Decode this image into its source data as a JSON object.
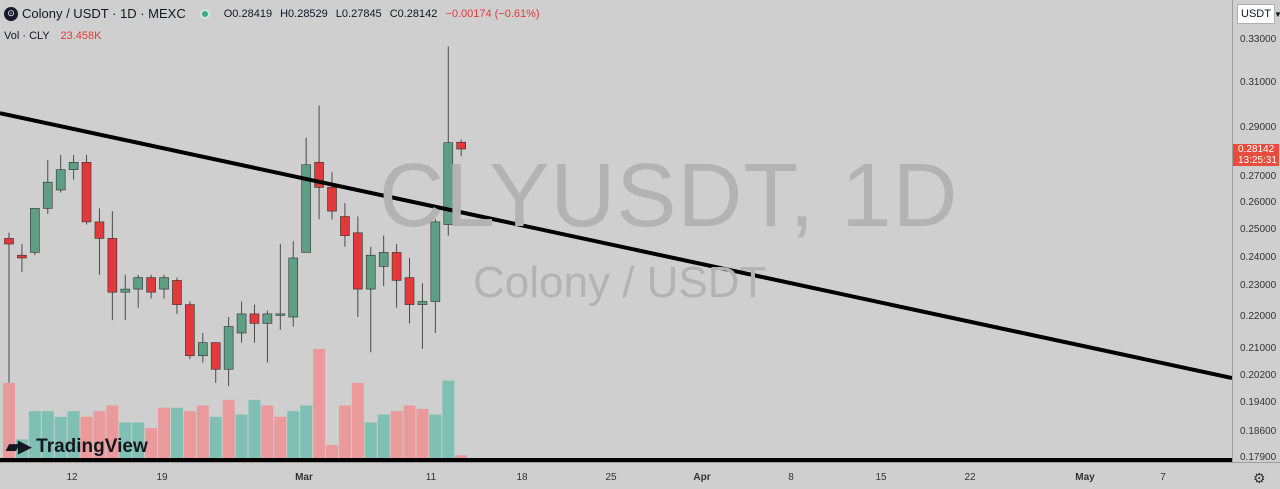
{
  "header": {
    "logo_icon": "colony-logo-icon",
    "title": "Colony / USDT · 1D · MEXC",
    "open": "O0.28419",
    "high": "H0.28529",
    "low": "L0.27845",
    "close": "C0.28142",
    "change": "−0.00174 (−0.61%)"
  },
  "volume_label": {
    "name": "Vol · CLY",
    "value": "23.458K"
  },
  "watermark": {
    "symbol": "CLYUSDT, 1D",
    "pair": "Colony / USDT"
  },
  "currency_button": "USDT",
  "last_price": {
    "price": "0.28142",
    "countdown": "13:25:31"
  },
  "brand": "TradingView",
  "colors": {
    "up": "#5e9e84",
    "down": "#e23a3a",
    "vol_up": "#7fbfb4",
    "vol_down": "#ea9a9a",
    "background": "#cfcfcf"
  },
  "chart_data": {
    "type": "candlestick",
    "y_ticks": [
      "0.33000",
      "0.31000",
      "0.29000",
      "0.27000",
      "0.26000",
      "0.25000",
      "0.24000",
      "0.23000",
      "0.22000",
      "0.21000",
      "0.20200",
      "0.19400",
      "0.18600",
      "0.17900"
    ],
    "x_ticks": [
      "12",
      "19",
      "Mar",
      "11",
      "18",
      "25",
      "Apr",
      "8",
      "15",
      "22",
      "May",
      "7"
    ],
    "candles": [
      {
        "date": "Feb 8",
        "o": 0.247,
        "h": 0.249,
        "l": 0.2,
        "c": 0.245
      },
      {
        "date": "Feb 9",
        "o": 0.241,
        "h": 0.245,
        "l": 0.235,
        "c": 0.24
      },
      {
        "date": "Feb 10",
        "o": 0.242,
        "h": 0.258,
        "l": 0.241,
        "c": 0.258
      },
      {
        "date": "Feb 11",
        "o": 0.258,
        "h": 0.277,
        "l": 0.256,
        "c": 0.268
      },
      {
        "date": "Feb 12",
        "o": 0.265,
        "h": 0.279,
        "l": 0.264,
        "c": 0.273
      },
      {
        "date": "Feb 13",
        "o": 0.273,
        "h": 0.279,
        "l": 0.269,
        "c": 0.276
      },
      {
        "date": "Feb 14",
        "o": 0.276,
        "h": 0.279,
        "l": 0.252,
        "c": 0.253
      },
      {
        "date": "Feb 15",
        "o": 0.253,
        "h": 0.258,
        "l": 0.234,
        "c": 0.247
      },
      {
        "date": "Feb 16",
        "o": 0.247,
        "h": 0.257,
        "l": 0.219,
        "c": 0.228
      },
      {
        "date": "Feb 17",
        "o": 0.228,
        "h": 0.234,
        "l": 0.219,
        "c": 0.229
      },
      {
        "date": "Feb 18",
        "o": 0.229,
        "h": 0.234,
        "l": 0.223,
        "c": 0.233
      },
      {
        "date": "Feb 19",
        "o": 0.233,
        "h": 0.234,
        "l": 0.226,
        "c": 0.228
      },
      {
        "date": "Feb 20",
        "o": 0.229,
        "h": 0.234,
        "l": 0.226,
        "c": 0.233
      },
      {
        "date": "Feb 21",
        "o": 0.232,
        "h": 0.233,
        "l": 0.221,
        "c": 0.224
      },
      {
        "date": "Feb 22",
        "o": 0.224,
        "h": 0.225,
        "l": 0.207,
        "c": 0.208
      },
      {
        "date": "Feb 23",
        "o": 0.208,
        "h": 0.215,
        "l": 0.206,
        "c": 0.212
      },
      {
        "date": "Feb 24",
        "o": 0.212,
        "h": 0.212,
        "l": 0.2,
        "c": 0.204
      },
      {
        "date": "Feb 25",
        "o": 0.204,
        "h": 0.22,
        "l": 0.199,
        "c": 0.217
      },
      {
        "date": "Feb 26",
        "o": 0.215,
        "h": 0.225,
        "l": 0.212,
        "c": 0.221
      },
      {
        "date": "Feb 27",
        "o": 0.221,
        "h": 0.224,
        "l": 0.212,
        "c": 0.218
      },
      {
        "date": "Feb 28",
        "o": 0.218,
        "h": 0.222,
        "l": 0.206,
        "c": 0.221
      },
      {
        "date": "Feb 29",
        "o": 0.221,
        "h": 0.245,
        "l": 0.216,
        "c": 0.221
      },
      {
        "date": "Mar 1",
        "o": 0.22,
        "h": 0.246,
        "l": 0.217,
        "c": 0.24
      },
      {
        "date": "Mar 2",
        "o": 0.242,
        "h": 0.286,
        "l": 0.242,
        "c": 0.275
      },
      {
        "date": "Mar 3",
        "o": 0.276,
        "h": 0.3,
        "l": 0.254,
        "c": 0.266
      },
      {
        "date": "Mar 4",
        "o": 0.266,
        "h": 0.272,
        "l": 0.254,
        "c": 0.257
      },
      {
        "date": "Mar 5",
        "o": 0.255,
        "h": 0.26,
        "l": 0.244,
        "c": 0.248
      },
      {
        "date": "Mar 6",
        "o": 0.249,
        "h": 0.255,
        "l": 0.22,
        "c": 0.229
      },
      {
        "date": "Mar 7",
        "o": 0.229,
        "h": 0.244,
        "l": 0.209,
        "c": 0.241
      },
      {
        "date": "Mar 8",
        "o": 0.237,
        "h": 0.248,
        "l": 0.23,
        "c": 0.242
      },
      {
        "date": "Mar 9",
        "o": 0.242,
        "h": 0.245,
        "l": 0.223,
        "c": 0.232
      },
      {
        "date": "Mar 10",
        "o": 0.233,
        "h": 0.24,
        "l": 0.218,
        "c": 0.224
      },
      {
        "date": "Mar 11",
        "o": 0.224,
        "h": 0.231,
        "l": 0.21,
        "c": 0.225
      },
      {
        "date": "Mar 12",
        "o": 0.225,
        "h": 0.254,
        "l": 0.215,
        "c": 0.253
      },
      {
        "date": "Mar 13",
        "o": 0.252,
        "h": 0.327,
        "l": 0.248,
        "c": 0.284
      },
      {
        "date": "Mar 14",
        "o": 0.28419,
        "h": 0.28529,
        "l": 0.27845,
        "c": 0.28142
      }
    ],
    "volume": [
      {
        "v": 0.7,
        "up": false
      },
      {
        "v": 0.2,
        "up": true
      },
      {
        "v": 0.45,
        "up": true
      },
      {
        "v": 0.45,
        "up": true
      },
      {
        "v": 0.4,
        "up": true
      },
      {
        "v": 0.45,
        "up": true
      },
      {
        "v": 0.4,
        "up": false
      },
      {
        "v": 0.45,
        "up": false
      },
      {
        "v": 0.5,
        "up": false
      },
      {
        "v": 0.35,
        "up": true
      },
      {
        "v": 0.35,
        "up": true
      },
      {
        "v": 0.3,
        "up": false
      },
      {
        "v": 0.48,
        "up": false
      },
      {
        "v": 0.48,
        "up": true
      },
      {
        "v": 0.45,
        "up": false
      },
      {
        "v": 0.5,
        "up": false
      },
      {
        "v": 0.4,
        "up": true
      },
      {
        "v": 0.55,
        "up": false
      },
      {
        "v": 0.42,
        "up": true
      },
      {
        "v": 0.55,
        "up": true
      },
      {
        "v": 0.5,
        "up": false
      },
      {
        "v": 0.4,
        "up": false
      },
      {
        "v": 0.45,
        "up": true
      },
      {
        "v": 0.5,
        "up": true
      },
      {
        "v": 1.0,
        "up": false
      },
      {
        "v": 0.15,
        "up": false
      },
      {
        "v": 0.5,
        "up": false
      },
      {
        "v": 0.7,
        "up": false
      },
      {
        "v": 0.35,
        "up": true
      },
      {
        "v": 0.42,
        "up": true
      },
      {
        "v": 0.45,
        "up": false
      },
      {
        "v": 0.5,
        "up": false
      },
      {
        "v": 0.47,
        "up": false
      },
      {
        "v": 0.42,
        "up": true
      },
      {
        "v": 0.72,
        "up": true
      },
      {
        "v": 0.06,
        "up": false
      }
    ],
    "trendline": {
      "from": {
        "date": "Feb 8",
        "price": 0.2966
      },
      "to": {
        "date": "May 8",
        "price": 0.2014
      }
    },
    "support_line": {
      "price": 0.1781
    }
  }
}
